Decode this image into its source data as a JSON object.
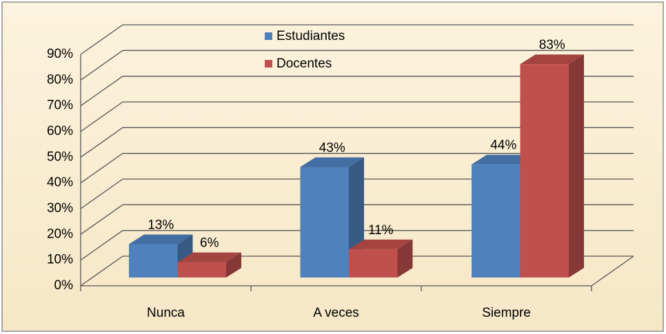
{
  "chart_data": {
    "type": "bar3d",
    "categories": [
      "Nunca",
      "A veces",
      "Siempre"
    ],
    "series": [
      {
        "name": "Estudiantes",
        "color": "#4f81bd",
        "values": [
          13,
          43,
          44
        ],
        "value_labels": [
          "13%",
          "43%",
          "44%"
        ]
      },
      {
        "name": "Docentes",
        "color": "#c0504d",
        "values": [
          6,
          11,
          83
        ],
        "value_labels": [
          "6%",
          "11%",
          "83%"
        ]
      }
    ],
    "ylim": [
      0,
      90
    ],
    "yticks": [
      {
        "value": 0,
        "label": "0%"
      },
      {
        "value": 10,
        "label": "10%"
      },
      {
        "value": 20,
        "label": "20%"
      },
      {
        "value": 30,
        "label": "30%"
      },
      {
        "value": 40,
        "label": "40%"
      },
      {
        "value": 50,
        "label": "50%"
      },
      {
        "value": 60,
        "label": "60%"
      },
      {
        "value": 70,
        "label": "70%"
      },
      {
        "value": 80,
        "label": "80%"
      },
      {
        "value": 90,
        "label": "90%"
      }
    ],
    "grid": true
  }
}
